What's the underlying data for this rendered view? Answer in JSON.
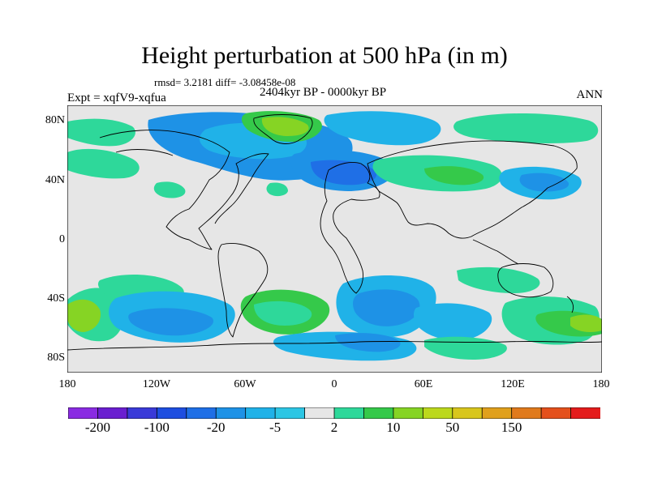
{
  "plot": {
    "title": "Height perturbation at 500 hPa (in m)",
    "stats": "rmsd= 3.2181 diff= -3.08458e-08",
    "experiment": "Expt = xqfV9-xqfua",
    "period": "2404kyr BP - 0000kyr BP",
    "season": "ANN"
  },
  "axes": {
    "y_ticks": [
      "80N",
      "40N",
      "0",
      "40S",
      "80S"
    ],
    "x_ticks": [
      "180",
      "120W",
      "60W",
      "0",
      "60E",
      "120E",
      "180"
    ],
    "lat_range": [
      -90,
      90
    ],
    "lon_range": [
      -180,
      180
    ]
  },
  "colorbar": {
    "colors": [
      "#8a2be2",
      "#6a1fd0",
      "#3a3ad8",
      "#1e4ee0",
      "#1f6fe6",
      "#1e92e6",
      "#20b2e8",
      "#2cc6e4",
      "#e6e6e6",
      "#2ed89a",
      "#35c94a",
      "#86d424",
      "#bcd81c",
      "#d8c61c",
      "#e0a01c",
      "#e07a1c",
      "#e4501c",
      "#e41c1c"
    ],
    "labels": [
      "-200",
      "-100",
      "-20",
      "-5",
      "2",
      "10",
      "50",
      "150"
    ],
    "label_boundaries": [
      1,
      3,
      5,
      7,
      9,
      11,
      13,
      15
    ]
  },
  "map_colors": {
    "land": "#e6e6e6",
    "coast": "#000000"
  }
}
